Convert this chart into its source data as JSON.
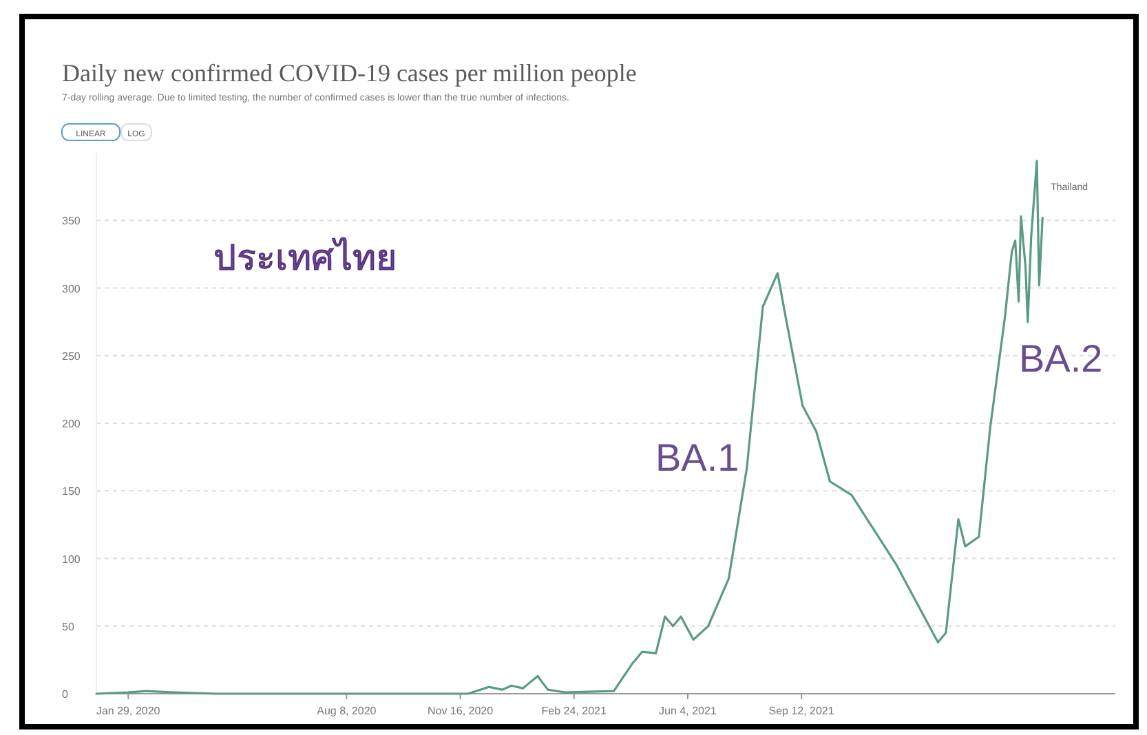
{
  "chart_data": {
    "type": "line",
    "title": "Daily new confirmed COVID-19 cases per million people",
    "subtitle": "7-day rolling average. Due to limited testing, the number of confirmed cases is lower than the true number of infections.",
    "xlim": [
      "2020-01-01",
      "2022-06-15"
    ],
    "xticks": [
      {
        "value": "2020-01-29",
        "label": "Jan 29, 2020"
      },
      {
        "value": "2020-08-08",
        "label": "Aug 8, 2020"
      },
      {
        "value": "2020-11-16",
        "label": "Nov 16, 2020"
      },
      {
        "value": "2021-02-24",
        "label": "Feb 24, 2021"
      },
      {
        "value": "2021-06-04",
        "label": "Jun 4, 2021"
      },
      {
        "value": "2021-09-12",
        "label": "Sep 12, 2021"
      }
    ],
    "ylim": [
      0,
      400
    ],
    "yticks": [
      0,
      50,
      100,
      150,
      200,
      250,
      300,
      350
    ],
    "grid": "y",
    "series": [
      {
        "name": "Thailand",
        "color": "#5a9a87",
        "x": [
          "2020-01-01",
          "2020-01-29",
          "2020-02-14",
          "2020-03-09",
          "2020-04-15",
          "2020-11-23",
          "2020-12-11",
          "2020-12-23",
          "2020-12-31",
          "2021-01-10",
          "2021-01-23",
          "2021-02-01",
          "2021-02-16",
          "2021-03-31",
          "2021-04-16",
          "2021-04-25",
          "2021-05-07",
          "2021-05-15",
          "2021-05-22",
          "2021-05-29",
          "2021-06-09",
          "2021-06-22",
          "2021-07-10",
          "2021-07-26",
          "2021-08-09",
          "2021-08-22",
          "2021-08-29",
          "2021-09-13",
          "2021-09-25",
          "2021-10-07",
          "2021-10-26",
          "2021-12-04",
          "2022-01-10",
          "2022-01-17",
          "2022-01-28",
          "2022-02-03",
          "2022-02-15",
          "2022-02-25",
          "2022-03-10",
          "2022-03-16",
          "2022-03-19",
          "2022-03-22",
          "2022-03-24",
          "2022-03-28",
          "2022-03-30",
          "2022-04-02",
          "2022-04-07",
          "2022-04-09",
          "2022-04-12"
        ],
        "values": [
          0,
          1,
          2,
          1,
          0,
          0,
          5,
          3,
          6,
          4,
          13,
          3,
          1,
          2,
          22,
          31,
          30,
          57,
          50,
          57,
          40,
          50,
          85,
          167,
          286,
          311,
          279,
          213,
          194,
          157,
          147,
          96,
          38,
          45,
          129,
          109,
          116,
          197,
          279,
          327,
          335,
          290,
          353,
          316,
          275,
          338,
          394,
          302,
          352
        ]
      }
    ],
    "annotations": [
      "ประเทศไทย",
      "LINEAR",
      "LOG",
      "BA.1",
      "BA.2"
    ]
  }
}
